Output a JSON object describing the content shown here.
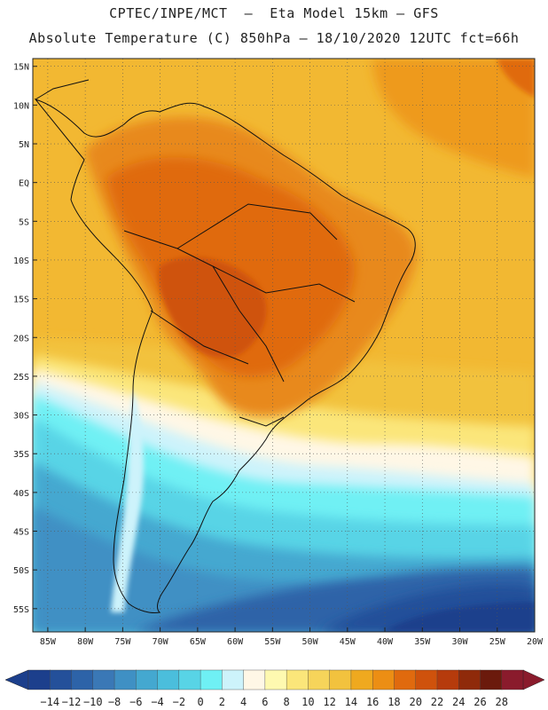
{
  "header": {
    "line1": "CPTEC/INPE/MCT  –  Eta Model 15km – GFS",
    "line2": "Absolute Temperature (C) 850hPa – 18/10/2020 12UTC fct=66h"
  },
  "map": {
    "lat_labels": [
      "15N",
      "10N",
      "5N",
      "EQ",
      "5S",
      "10S",
      "15S",
      "20S",
      "25S",
      "30S",
      "35S",
      "40S",
      "45S",
      "50S",
      "55S"
    ],
    "lon_labels": [
      "85W",
      "80W",
      "75W",
      "70W",
      "65W",
      "60W",
      "55W",
      "50W",
      "45W",
      "40W",
      "35W",
      "30W",
      "25W",
      "20W"
    ],
    "extent": {
      "lon_min": -87,
      "lon_max": -20,
      "lat_min": -58,
      "lat_max": 16
    }
  },
  "colorbar": {
    "labels": [
      "-14",
      "-12",
      "-10",
      "-8",
      "-6",
      "-4",
      "-2",
      "0",
      "2",
      "4",
      "6",
      "8",
      "10",
      "12",
      "14",
      "16",
      "18",
      "20",
      "22",
      "24",
      "26",
      "28"
    ],
    "colors": [
      "#1c3f8c",
      "#24509a",
      "#2d63a8",
      "#3a78b6",
      "#3f90c4",
      "#44a8d0",
      "#4bbedc",
      "#58d4e6",
      "#6ff0f4",
      "#cdf3fb",
      "#fff7e6",
      "#fef9b0",
      "#fbe67a",
      "#f6d45a",
      "#f2c23e",
      "#efa91f",
      "#ec8e14",
      "#e06a0e",
      "#cf520c",
      "#b63b0c",
      "#8f2a0a",
      "#6b1a0c",
      "#8a1b2c"
    ],
    "left_arrow_color": "#1c3f8c",
    "right_arrow_color": "#8a1b2c"
  }
}
